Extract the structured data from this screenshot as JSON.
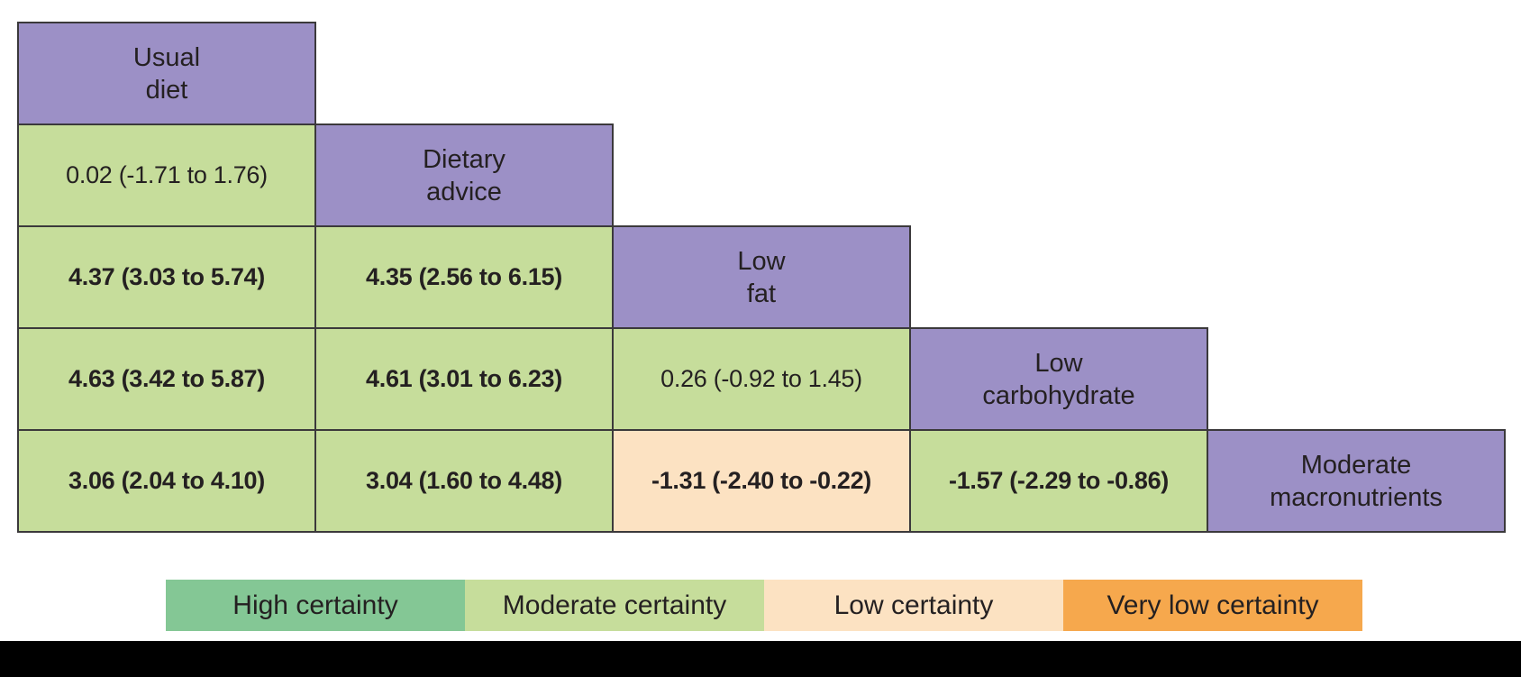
{
  "colors": {
    "diet_header": "#9c90c6",
    "high_certainty": "#84c795",
    "moderate_certainty": "#c6dd9b",
    "low_certainty": "#fce2c2",
    "very_low_certainty": "#f6a84d",
    "border": "#3b393b",
    "text": "#242021",
    "bottom_bar": "#000000"
  },
  "table": {
    "cells": [
      {
        "row": 0,
        "col": 0,
        "type": "header",
        "text": "Usual\ndiet"
      },
      {
        "row": 1,
        "col": 0,
        "type": "value",
        "certainty": "moderate",
        "bold": false,
        "text": "0.02 (-1.71 to 1.76)"
      },
      {
        "row": 1,
        "col": 1,
        "type": "header",
        "text": "Dietary\nadvice"
      },
      {
        "row": 2,
        "col": 0,
        "type": "value",
        "certainty": "moderate",
        "bold": true,
        "text": "4.37 (3.03 to 5.74)"
      },
      {
        "row": 2,
        "col": 1,
        "type": "value",
        "certainty": "moderate",
        "bold": true,
        "text": "4.35 (2.56 to 6.15)"
      },
      {
        "row": 2,
        "col": 2,
        "type": "header",
        "text": "Low\nfat"
      },
      {
        "row": 3,
        "col": 0,
        "type": "value",
        "certainty": "moderate",
        "bold": true,
        "text": "4.63 (3.42 to 5.87)"
      },
      {
        "row": 3,
        "col": 1,
        "type": "value",
        "certainty": "moderate",
        "bold": true,
        "text": "4.61 (3.01 to 6.23)"
      },
      {
        "row": 3,
        "col": 2,
        "type": "value",
        "certainty": "moderate",
        "bold": false,
        "text": "0.26 (-0.92 to 1.45)"
      },
      {
        "row": 3,
        "col": 3,
        "type": "header",
        "text": "Low\ncarbohydrate"
      },
      {
        "row": 4,
        "col": 0,
        "type": "value",
        "certainty": "moderate",
        "bold": true,
        "text": "3.06 (2.04 to 4.10)"
      },
      {
        "row": 4,
        "col": 1,
        "type": "value",
        "certainty": "moderate",
        "bold": true,
        "text": "3.04 (1.60 to 4.48)"
      },
      {
        "row": 4,
        "col": 2,
        "type": "value",
        "certainty": "low",
        "bold": true,
        "text": "-1.31 (-2.40 to -0.22)"
      },
      {
        "row": 4,
        "col": 3,
        "type": "value",
        "certainty": "moderate",
        "bold": true,
        "text": "-1.57 (-2.29 to -0.86)"
      },
      {
        "row": 4,
        "col": 4,
        "type": "header",
        "text": "Moderate\nmacronutrients"
      }
    ]
  },
  "legend": {
    "items": [
      {
        "label": "High certainty",
        "certainty": "high"
      },
      {
        "label": "Moderate certainty",
        "certainty": "moderate"
      },
      {
        "label": "Low certainty",
        "certainty": "low"
      },
      {
        "label": "Very low certainty",
        "certainty": "verylow"
      }
    ]
  },
  "chart_data": {
    "type": "table",
    "layout": "lower-triangle league table, diet names on diagonal",
    "treatments": [
      "Usual diet",
      "Dietary advice",
      "Low fat",
      "Low carbohydrate",
      "Moderate macronutrients"
    ],
    "comparisons": [
      {
        "row_treatment": "Dietary advice",
        "col_treatment": "Usual diet",
        "estimate": 0.02,
        "ci_low": -1.71,
        "ci_high": 1.76,
        "certainty": "Moderate certainty",
        "bold": false
      },
      {
        "row_treatment": "Low fat",
        "col_treatment": "Usual diet",
        "estimate": 4.37,
        "ci_low": 3.03,
        "ci_high": 5.74,
        "certainty": "Moderate certainty",
        "bold": true
      },
      {
        "row_treatment": "Low fat",
        "col_treatment": "Dietary advice",
        "estimate": 4.35,
        "ci_low": 2.56,
        "ci_high": 6.15,
        "certainty": "Moderate certainty",
        "bold": true
      },
      {
        "row_treatment": "Low carbohydrate",
        "col_treatment": "Usual diet",
        "estimate": 4.63,
        "ci_low": 3.42,
        "ci_high": 5.87,
        "certainty": "Moderate certainty",
        "bold": true
      },
      {
        "row_treatment": "Low carbohydrate",
        "col_treatment": "Dietary advice",
        "estimate": 4.61,
        "ci_low": 3.01,
        "ci_high": 6.23,
        "certainty": "Moderate certainty",
        "bold": true
      },
      {
        "row_treatment": "Low carbohydrate",
        "col_treatment": "Low fat",
        "estimate": 0.26,
        "ci_low": -0.92,
        "ci_high": 1.45,
        "certainty": "Moderate certainty",
        "bold": false
      },
      {
        "row_treatment": "Moderate macronutrients",
        "col_treatment": "Usual diet",
        "estimate": 3.06,
        "ci_low": 2.04,
        "ci_high": 4.1,
        "certainty": "Moderate certainty",
        "bold": true
      },
      {
        "row_treatment": "Moderate macronutrients",
        "col_treatment": "Dietary advice",
        "estimate": 3.04,
        "ci_low": 1.6,
        "ci_high": 4.48,
        "certainty": "Moderate certainty",
        "bold": true
      },
      {
        "row_treatment": "Moderate macronutrients",
        "col_treatment": "Low fat",
        "estimate": -1.31,
        "ci_low": -2.4,
        "ci_high": -0.22,
        "certainty": "Low certainty",
        "bold": true
      },
      {
        "row_treatment": "Moderate macronutrients",
        "col_treatment": "Low carbohydrate",
        "estimate": -1.57,
        "ci_low": -2.29,
        "ci_high": -0.86,
        "certainty": "Moderate certainty",
        "bold": true
      }
    ],
    "legend_entries": [
      "High certainty",
      "Moderate certainty",
      "Low certainty",
      "Very low certainty"
    ],
    "legend_position": "bottom"
  }
}
